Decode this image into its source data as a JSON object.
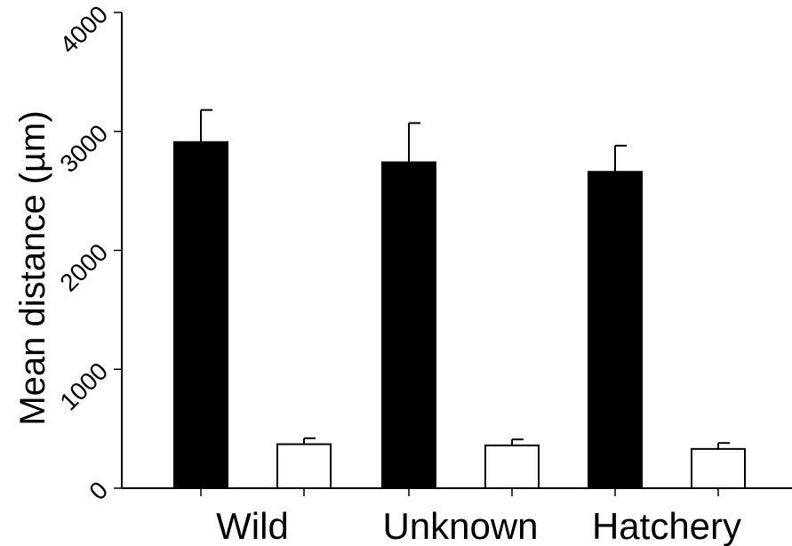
{
  "chart_data": {
    "type": "bar",
    "title": "",
    "xlabel": "",
    "ylabel": "Mean distance (µm)",
    "ylim": [
      0,
      4000
    ],
    "yticks": [
      "0",
      "1000",
      "2000",
      "3000",
      "4000"
    ],
    "categories": [
      "Wild",
      "Unknown",
      "Hatchery"
    ],
    "series": [
      {
        "color": "#000000",
        "values": [
          2910,
          2740,
          2660
        ],
        "errors": [
          270,
          330,
          220
        ]
      },
      {
        "color": "#ffffff",
        "values": [
          370,
          360,
          330
        ],
        "errors": [
          50,
          50,
          50
        ]
      }
    ],
    "grid": false,
    "legend": "none"
  }
}
